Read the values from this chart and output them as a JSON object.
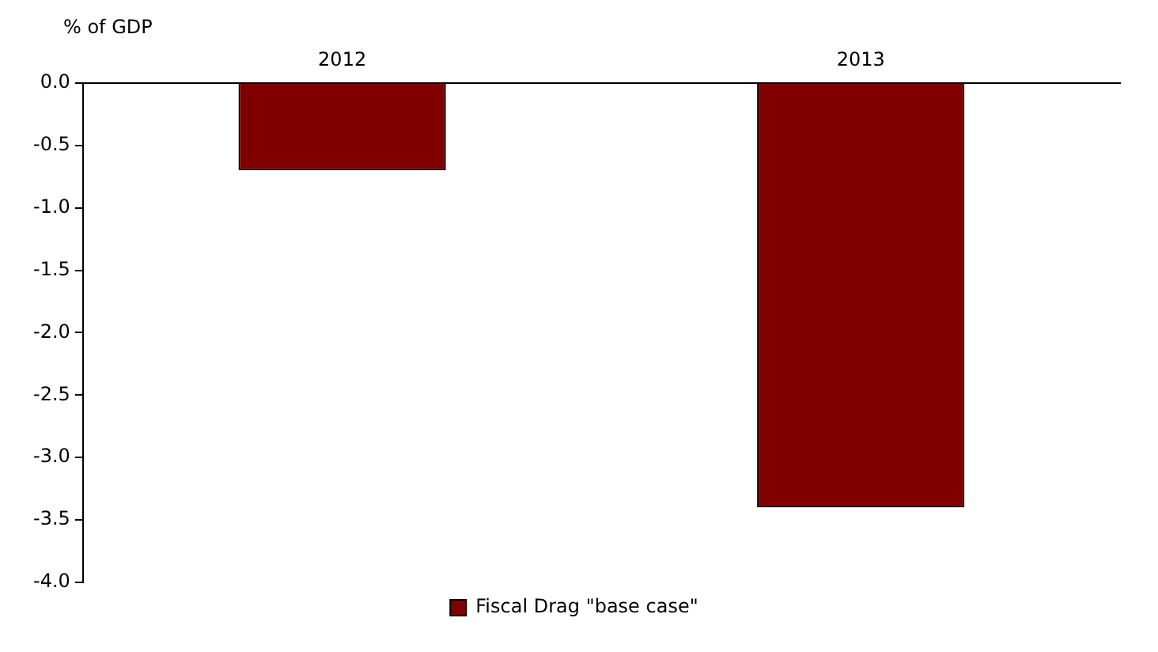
{
  "chart_data": {
    "type": "bar",
    "ylabel": "% of GDP",
    "categories": [
      "2012",
      "2013"
    ],
    "series": [
      {
        "name": "Fiscal Drag \"base case\"",
        "color": "#800000",
        "values": [
          -0.7,
          -3.4
        ]
      }
    ],
    "ylim": [
      -4.0,
      0.0
    ],
    "yticks": [
      {
        "value": 0,
        "label": "0.0"
      },
      {
        "value": -0.5,
        "label": "-0.5"
      },
      {
        "value": -1,
        "label": "-1.0"
      },
      {
        "value": -1.5,
        "label": "-1.5"
      },
      {
        "value": -2,
        "label": "-2.0"
      },
      {
        "value": -2.5,
        "label": "-2.5"
      },
      {
        "value": -3,
        "label": "-3.0"
      },
      {
        "value": -3.5,
        "label": "-3.5"
      },
      {
        "value": -4,
        "label": "-4.0"
      }
    ],
    "grid": false,
    "legend": "bottom"
  }
}
